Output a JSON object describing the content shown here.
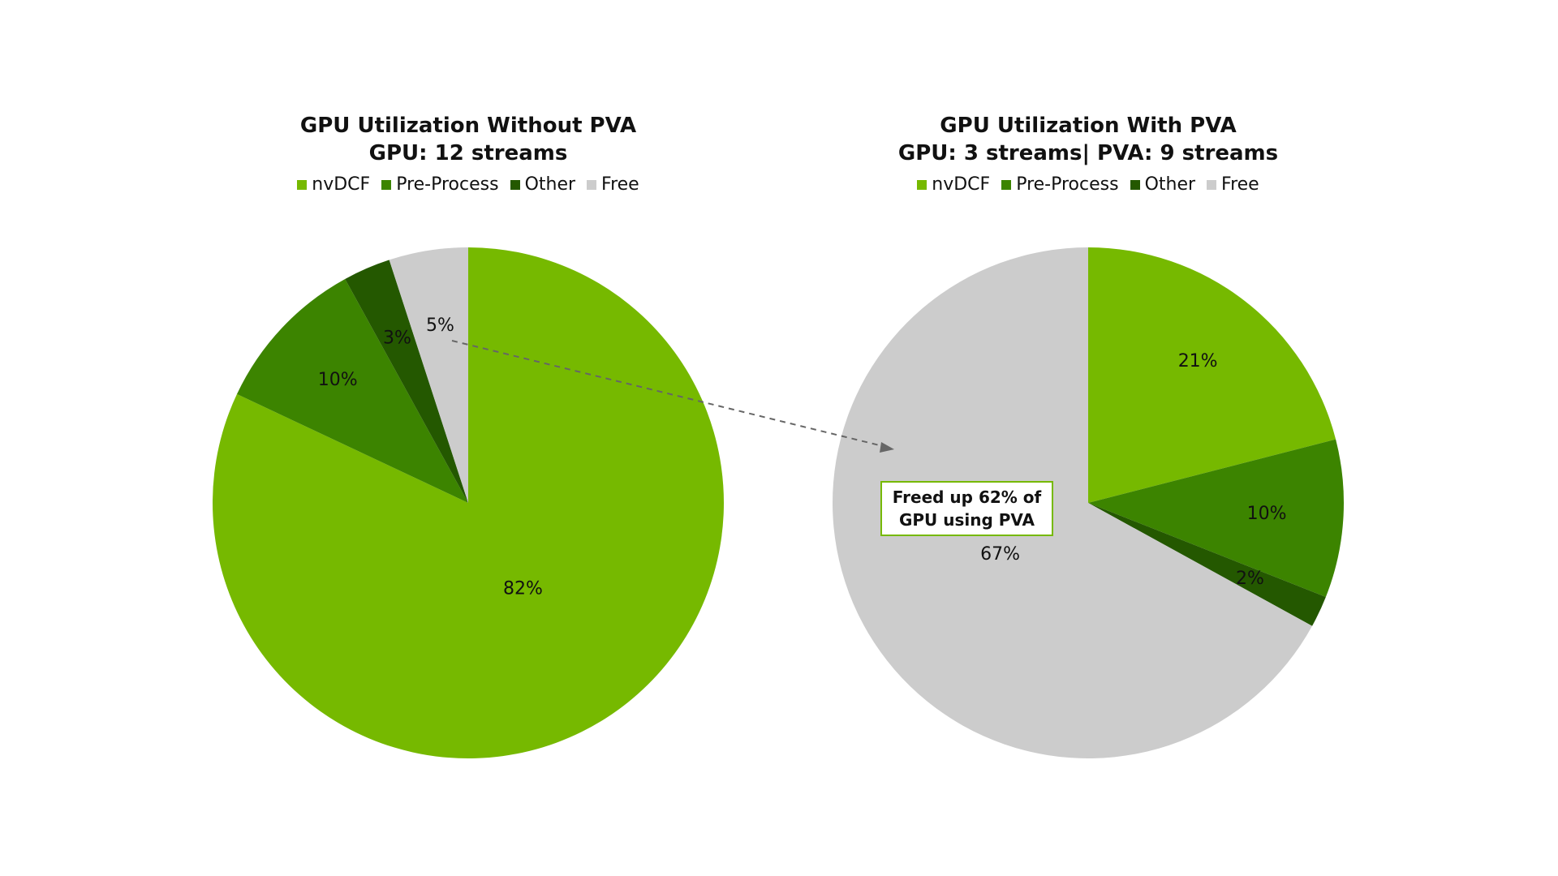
{
  "chart_data": [
    {
      "type": "pie",
      "title": "GPU Utilization Without PVA",
      "subtitle": "GPU: 12 streams",
      "categories": [
        "nvDCF",
        "Pre-Process",
        "Other",
        "Free"
      ],
      "values": [
        82,
        10,
        3,
        5
      ],
      "value_labels": [
        "82%",
        "10%",
        "3%",
        "5%"
      ],
      "colors": [
        "#76b900",
        "#3c8400",
        "#245800",
        "#cccccc"
      ],
      "legend": "top"
    },
    {
      "type": "pie",
      "title": "GPU Utilization With PVA",
      "subtitle": "GPU: 3 streams| PVA: 9 streams",
      "categories": [
        "nvDCF",
        "Pre-Process",
        "Other",
        "Free"
      ],
      "values": [
        21,
        10,
        2,
        67
      ],
      "value_labels": [
        "21%",
        "10%",
        "2%",
        "67%"
      ],
      "colors": [
        "#76b900",
        "#3c8400",
        "#245800",
        "#cccccc"
      ],
      "legend": "top",
      "annotation": "Freed up 62% of GPU using PVA"
    }
  ]
}
